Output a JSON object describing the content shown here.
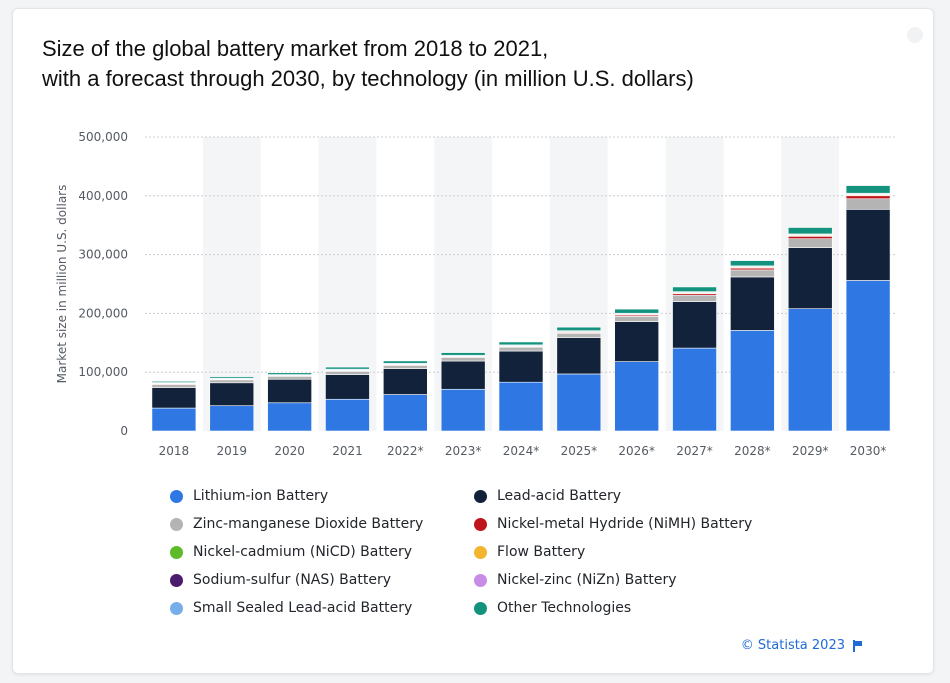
{
  "title_lines": [
    "Size of the global battery market from 2018 to 2021,",
    "with a forecast through 2030, by technology (in million U.S. dollars)"
  ],
  "source": "© Statista 2023",
  "chart_data": {
    "type": "bar",
    "stacked": true,
    "title": "Size of the global battery market from 2018 to 2021, with a forecast through 2030, by technology (in million U.S. dollars)",
    "xlabel": "",
    "ylabel": "Market size in million U.S. dollars",
    "ylim": [
      0,
      500000
    ],
    "yticks": [
      0,
      100000,
      200000,
      300000,
      400000,
      500000
    ],
    "ytick_labels": [
      "0",
      "100,000",
      "200,000",
      "300,000",
      "400,000",
      "500,000"
    ],
    "grid": true,
    "categories": [
      "2018",
      "2019",
      "2020",
      "2021",
      "2022*",
      "2023*",
      "2024*",
      "2025*",
      "2026*",
      "2027*",
      "2028*",
      "2029*",
      "2030*"
    ],
    "series": [
      {
        "name": "Lithium-ion Battery",
        "color": "#2f78e4",
        "values": [
          39000,
          43000,
          48000,
          54000,
          62000,
          71000,
          83000,
          97000,
          118000,
          141000,
          171000,
          208000,
          256000
        ]
      },
      {
        "name": "Lead-acid Battery",
        "color": "#11223a",
        "values": [
          35000,
          39000,
          40000,
          42000,
          44000,
          48000,
          53000,
          62000,
          68000,
          79000,
          91000,
          104000,
          121000
        ]
      },
      {
        "name": "Zinc-manganese Dioxide Battery",
        "color": "#b4b4b4",
        "values": [
          5000,
          5000,
          5000,
          5500,
          5500,
          6000,
          6500,
          7000,
          9000,
          11000,
          12000,
          15000,
          18000
        ]
      },
      {
        "name": "Nickel-metal Hydride (NiMH) Battery",
        "color": "#c0141c",
        "values": [
          2000,
          1500,
          1500,
          2000,
          2000,
          2000,
          2000,
          2500,
          3000,
          3500,
          4000,
          5000,
          6000
        ]
      },
      {
        "name": "Nickel-cadmium (NiCD) Battery",
        "color": "#5dbb2a",
        "values": [
          300,
          300,
          300,
          300,
          300,
          300,
          300,
          300,
          300,
          300,
          300,
          300,
          300
        ]
      },
      {
        "name": "Flow Battery",
        "color": "#f2b52d",
        "values": [
          100,
          100,
          100,
          100,
          100,
          150,
          150,
          200,
          200,
          300,
          300,
          400,
          400
        ]
      },
      {
        "name": "Sodium-sulfur (NAS) Battery",
        "color": "#4a1c6e",
        "values": [
          400,
          400,
          400,
          500,
          500,
          600,
          700,
          800,
          900,
          1000,
          1200,
          1400,
          1600
        ]
      },
      {
        "name": "Nickel-zinc (NiZn) Battery",
        "color": "#c88be6",
        "values": [
          300,
          300,
          300,
          300,
          300,
          300,
          300,
          300,
          300,
          300,
          300,
          300,
          300
        ]
      },
      {
        "name": "Small Sealed Lead-acid Battery",
        "color": "#75aee8",
        "values": [
          400,
          400,
          400,
          500,
          500,
          500,
          500,
          500,
          600,
          600,
          700,
          700,
          800
        ]
      },
      {
        "name": "Other Technologies",
        "color": "#13937e",
        "values": [
          2000,
          2500,
          3000,
          3500,
          4000,
          4500,
          5000,
          6000,
          7000,
          8000,
          9000,
          11000,
          13000
        ]
      }
    ],
    "legend_position": "bottom"
  }
}
